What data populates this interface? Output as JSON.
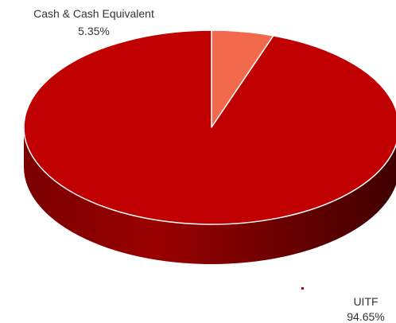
{
  "chart_data": {
    "type": "pie",
    "style": "3d",
    "start_angle_deg": 0,
    "categories": [
      "Cash & Cash Equivalent",
      "UITF"
    ],
    "values": [
      5.35,
      94.65
    ],
    "labels": [
      "5.35%",
      "94.65%"
    ],
    "colors": [
      "#f26a4b",
      "#c00000"
    ],
    "side_colors": [
      "#a5432b",
      "#820000"
    ],
    "border_color": "#ffffff"
  }
}
